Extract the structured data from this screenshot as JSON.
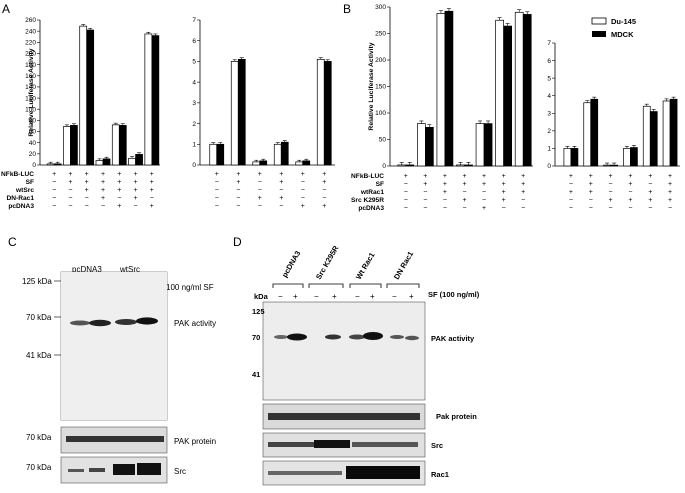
{
  "panels": {
    "A": "A",
    "B": "B",
    "C": "C",
    "D": "D"
  },
  "colors": {
    "du145": "#ffffff",
    "mdck": "#000000"
  },
  "chart_data": [
    {
      "type": "bar",
      "ylabel": "Relative Luciferase Activity",
      "ylim": [
        0,
        260
      ],
      "yticks": [
        "0",
        "20",
        "40",
        "60",
        "80",
        "100",
        "120",
        "140",
        "160",
        "180",
        "200",
        "220",
        "240",
        "260"
      ],
      "legend": [
        "Du-145",
        "MDCK"
      ],
      "series": [
        {
          "name": "Du-145",
          "values": [
            2,
            69,
            249,
            8,
            72,
            12,
            235
          ]
        },
        {
          "name": "MDCK",
          "values": [
            2,
            71,
            242,
            11,
            71,
            19,
            232
          ]
        }
      ],
      "rows": [
        {
          "label": "NFkB-LUC",
          "signs": [
            "+",
            "+",
            "+",
            "+",
            "+",
            "+",
            "+"
          ]
        },
        {
          "label": "SF",
          "signs": [
            "−",
            "+",
            "+",
            "+",
            "+",
            "+",
            "+"
          ]
        },
        {
          "label": "wtSrc",
          "signs": [
            "−",
            "−",
            "+",
            "+",
            "+",
            "+",
            "+"
          ]
        },
        {
          "label": "DN-Rac1",
          "signs": [
            "−",
            "−",
            "−",
            "+",
            "−",
            "+",
            "−"
          ]
        },
        {
          "label": "pcDNA3",
          "signs": [
            "−",
            "−",
            "−",
            "−",
            "+",
            "−",
            "+"
          ]
        }
      ]
    },
    {
      "type": "bar",
      "ylim": [
        0,
        7
      ],
      "yticks": [
        "0",
        "1",
        "2",
        "3",
        "4",
        "5",
        "6",
        "7"
      ],
      "series": [
        {
          "name": "Du-145",
          "values": [
            1.0,
            5.0,
            0.15,
            1.0,
            0.15,
            5.1
          ]
        },
        {
          "name": "MDCK",
          "values": [
            1.0,
            5.1,
            0.2,
            1.1,
            0.2,
            5.0
          ]
        }
      ],
      "rows": [
        {
          "label": "NFkB-LUC",
          "signs": [
            "+",
            "+",
            "+",
            "+",
            "+",
            "+"
          ]
        },
        {
          "label": "SF",
          "signs": [
            "−",
            "+",
            "−",
            "+",
            "−",
            "+"
          ]
        },
        {
          "label": "wtSrc",
          "signs": [
            "−",
            "−",
            "−",
            "−",
            "−",
            "−"
          ]
        },
        {
          "label": "DN-Rac1",
          "signs": [
            "−",
            "−",
            "+",
            "+",
            "−",
            "−"
          ]
        },
        {
          "label": "pcDNA3",
          "signs": [
            "−",
            "−",
            "−",
            "−",
            "+",
            "+"
          ]
        }
      ]
    },
    {
      "type": "bar",
      "ylabel": "Relative Luciferase Activity",
      "ylim": [
        0,
        300
      ],
      "yticks": [
        "0",
        "50",
        "100",
        "150",
        "200",
        "250",
        "300"
      ],
      "series": [
        {
          "name": "Du-145",
          "values": [
            2,
            80,
            288,
            2,
            80,
            275,
            290
          ]
        },
        {
          "name": "MDCK",
          "values": [
            2,
            73,
            292,
            2,
            80,
            264,
            286
          ]
        }
      ],
      "rows": [
        {
          "label": "NFkB-LUC",
          "signs": [
            "+",
            "+",
            "+",
            "+",
            "+",
            "+",
            "+"
          ]
        },
        {
          "label": "SF",
          "signs": [
            "−",
            "+",
            "+",
            "+",
            "+",
            "+",
            "+"
          ]
        },
        {
          "label": "wtRac1",
          "signs": [
            "−",
            "−",
            "+",
            "−",
            "−",
            "+",
            "+"
          ]
        },
        {
          "label": "Src K295R",
          "signs": [
            "−",
            "−",
            "−",
            "+",
            "−",
            "+",
            "−"
          ]
        },
        {
          "label": "pcDNA3",
          "signs": [
            "−",
            "−",
            "−",
            "−",
            "+",
            "−",
            "−"
          ]
        }
      ]
    },
    {
      "type": "bar",
      "ylim": [
        0,
        7
      ],
      "yticks": [
        "0",
        "1",
        "2",
        "3",
        "4",
        "5",
        "6",
        "7"
      ],
      "series": [
        {
          "name": "Du-145",
          "values": [
            1.0,
            3.6,
            0.05,
            1.0,
            3.4,
            3.7
          ]
        },
        {
          "name": "MDCK",
          "values": [
            1.0,
            3.8,
            0.05,
            1.05,
            3.1,
            3.8
          ]
        }
      ],
      "rows": [
        {
          "label": "NFkB-LUC",
          "signs": [
            "+",
            "+",
            "+",
            "+",
            "+",
            "+"
          ]
        },
        {
          "label": "SF",
          "signs": [
            "−",
            "+",
            "−",
            "+",
            "−",
            "+"
          ]
        },
        {
          "label": "wtRac1",
          "signs": [
            "+",
            "+",
            "−",
            "−",
            "+",
            "+"
          ]
        },
        {
          "label": "Src K295R",
          "signs": [
            "−",
            "−",
            "+",
            "+",
            "+",
            "+"
          ]
        },
        {
          "label": "pcDNA3",
          "signs": [
            "−",
            "−",
            "−",
            "−",
            "−",
            "−"
          ]
        }
      ]
    }
  ],
  "blotC": {
    "groups": [
      "pcDNA3",
      "wtSrc"
    ],
    "lanes": [
      "−",
      "+",
      "−",
      "+"
    ],
    "treatment": "100 ng/ml SF",
    "markers": [
      "125 kDa",
      "70 kDa",
      "41 kDa"
    ],
    "bands": {
      "pak_activity": "PAK activity",
      "pak_protein": "PAK protein",
      "src": "Src"
    },
    "marker70": "70 kDa"
  },
  "blotD": {
    "groups": [
      "pcDNA3",
      "Src K295R",
      "Wt Rac1",
      "DN Rac1"
    ],
    "lanes": [
      "−",
      "+",
      "−",
      "+",
      "−",
      "+",
      "−",
      "+"
    ],
    "treatment": "SF (100 ng/ml)",
    "kda": "kDa",
    "markers": [
      "125",
      "70",
      "41"
    ],
    "bands": {
      "pak_activity": "PAK activity",
      "pak_protein": "Pak protein",
      "src": "Src",
      "rac1": "Rac1"
    }
  }
}
